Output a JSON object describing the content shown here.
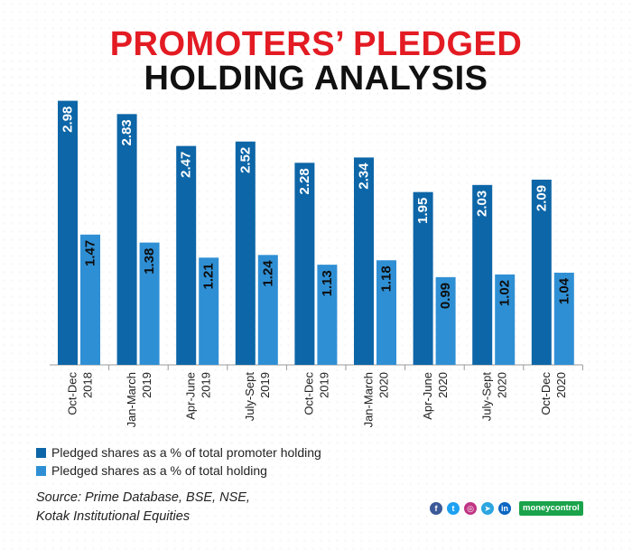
{
  "title": {
    "line1": "PROMOTERS’ PLEDGED",
    "line2": "HOLDING ANALYSIS"
  },
  "chart_data": {
    "type": "bar",
    "categories": [
      [
        "Oct-Dec",
        "2018"
      ],
      [
        "Jan-March",
        "2019"
      ],
      [
        "Apr-June",
        "2019"
      ],
      [
        "July-Sept",
        "2019"
      ],
      [
        "Oct-Dec",
        "2019"
      ],
      [
        "Jan-March",
        "2020"
      ],
      [
        "Apr-June",
        "2020"
      ],
      [
        "July-Sept",
        "2020"
      ],
      [
        "Oct-Dec",
        "2020"
      ]
    ],
    "series": [
      {
        "name": "Pledged shares as a % of total promoter holding",
        "color": "#0d66a7",
        "values": [
          2.98,
          2.83,
          2.47,
          2.52,
          2.28,
          2.34,
          1.95,
          2.03,
          2.09
        ]
      },
      {
        "name": "Pledged shares as a % of total holding",
        "color": "#2f8fd4",
        "values": [
          1.47,
          1.38,
          1.21,
          1.24,
          1.13,
          1.18,
          0.99,
          1.02,
          1.04
        ]
      }
    ],
    "ylim": [
      0,
      3.2
    ],
    "data_labels": "vertical, inside bars",
    "legend_position": "bottom-left"
  },
  "source": {
    "line1": "Source: Prime Database, BSE, NSE,",
    "line2": "Kotak Institutional Equities"
  },
  "branding": {
    "social_icons": [
      {
        "name": "facebook-icon",
        "glyph": "f",
        "color": "#3b5998"
      },
      {
        "name": "twitter-icon",
        "glyph": "t",
        "color": "#1da1f2"
      },
      {
        "name": "instagram-icon",
        "glyph": "◎",
        "color": "#c13584"
      },
      {
        "name": "telegram-icon",
        "glyph": "➤",
        "color": "#2ca5e0"
      },
      {
        "name": "linkedin-icon",
        "glyph": "in",
        "color": "#0a66c2"
      }
    ],
    "logo_text": "moneycontrol"
  }
}
